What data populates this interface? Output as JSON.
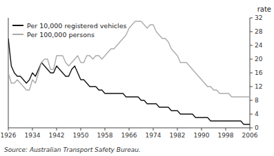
{
  "chart_data": {
    "type": "line",
    "y_label": "rate",
    "source": "Source: Australian Transport Safety Bureau.",
    "x": [
      1926,
      1927,
      1928,
      1929,
      1930,
      1931,
      1932,
      1933,
      1934,
      1935,
      1936,
      1937,
      1938,
      1939,
      1940,
      1941,
      1942,
      1943,
      1944,
      1945,
      1946,
      1947,
      1948,
      1949,
      1950,
      1951,
      1952,
      1953,
      1954,
      1955,
      1956,
      1957,
      1958,
      1959,
      1960,
      1961,
      1962,
      1963,
      1964,
      1965,
      1966,
      1967,
      1968,
      1969,
      1970,
      1971,
      1972,
      1973,
      1974,
      1975,
      1976,
      1977,
      1978,
      1979,
      1980,
      1981,
      1982,
      1983,
      1984,
      1985,
      1986,
      1987,
      1988,
      1989,
      1990,
      1991,
      1992,
      1993,
      1994,
      1995,
      1996,
      1997,
      1998,
      1999,
      2000,
      2001,
      2002,
      2003,
      2004,
      2005,
      2006
    ],
    "series": [
      {
        "name": "Per 10,000 registered vehicles",
        "color": "#111111",
        "values": [
          26,
          18,
          16,
          15,
          15,
          14,
          13,
          14,
          16,
          15,
          17,
          19,
          18,
          17,
          16,
          16,
          18,
          17,
          16,
          15,
          15,
          17,
          18,
          16,
          14,
          14,
          13,
          12,
          12,
          12,
          11,
          11,
          10,
          10,
          10,
          10,
          10,
          10,
          10,
          9,
          9,
          9,
          9,
          9,
          8,
          8,
          7,
          7,
          7,
          7,
          6,
          6,
          6,
          6,
          5,
          5,
          5,
          4,
          4,
          4,
          4,
          4,
          3,
          3,
          3,
          3,
          3,
          2,
          2,
          2,
          2,
          2,
          2,
          2,
          2,
          2,
          2,
          2,
          1,
          1,
          1
        ]
      },
      {
        "name": "Per 100,000 persons",
        "color": "#aaaaaa",
        "values": [
          16,
          13,
          13,
          14,
          13,
          12,
          11,
          11,
          14,
          13,
          16,
          19,
          20,
          20,
          17,
          17,
          21,
          21,
          21,
          19,
          18,
          19,
          20,
          21,
          19,
          19,
          21,
          21,
          20,
          21,
          21,
          20,
          21,
          22,
          23,
          23,
          24,
          25,
          26,
          27,
          29,
          30,
          31,
          31,
          31,
          30,
          29,
          30,
          30,
          28,
          27,
          26,
          26,
          25,
          23,
          22,
          21,
          19,
          19,
          19,
          18,
          17,
          16,
          15,
          14,
          13,
          12,
          12,
          11,
          11,
          10,
          10,
          10,
          10,
          9,
          9,
          9,
          9,
          9,
          9,
          9
        ]
      }
    ],
    "xlim": [
      1926,
      2006
    ],
    "ylim": [
      0,
      32
    ],
    "xticks": [
      1926,
      1934,
      1942,
      1950,
      1958,
      1966,
      1974,
      1982,
      1990,
      1998,
      2006
    ],
    "yticks": [
      0,
      4,
      8,
      12,
      16,
      20,
      24,
      28,
      32
    ],
    "grid": false,
    "legend": "upper left"
  }
}
